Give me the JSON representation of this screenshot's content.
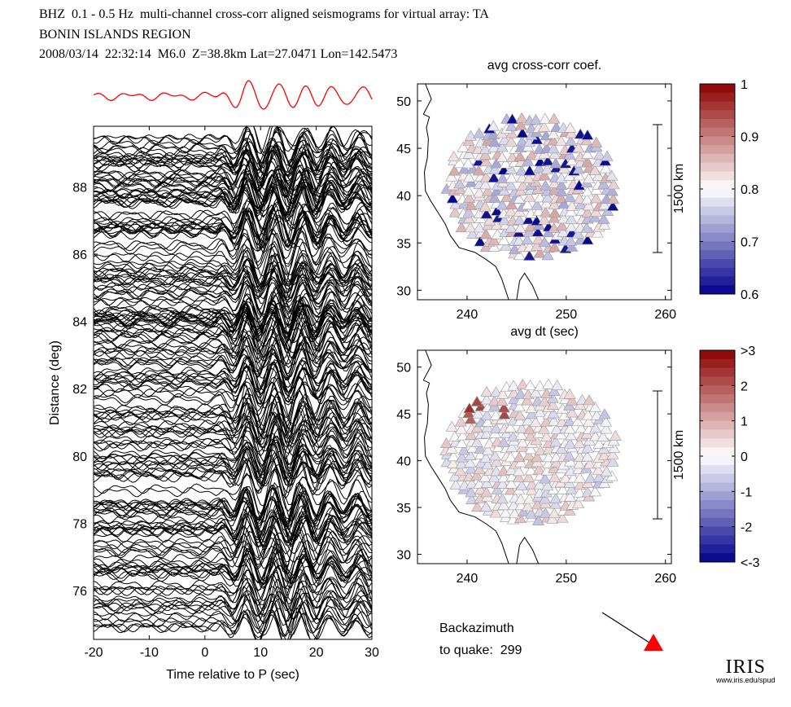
{
  "header": {
    "line1": "BHZ  0.1 - 0.5 Hz  multi-channel cross-corr aligned seismograms for virtual array: TA",
    "line2": "BONIN ISLANDS REGION",
    "line3": "2008/03/14  22:32:14  M6.0  Z=38.8km Lat=27.0471 Lon=142.5473"
  },
  "backazimuth": {
    "label": "Backazimuth",
    "value_label": "to quake:  299",
    "value": 299
  },
  "logo": {
    "text": "IRIS",
    "url_text": "www.iris.edu/spud"
  },
  "chart_data": [
    {
      "type": "line",
      "title": "",
      "xlabel": "Time relative to P (sec)",
      "ylabel": "Distance (deg)",
      "xlim": [
        -20,
        30
      ],
      "ylim": [
        74.55,
        89.8
      ],
      "xticks": [
        "-20",
        "-10",
        "0",
        "10",
        "20",
        "30"
      ],
      "yticks": [
        "76",
        "78",
        "80",
        "82",
        "84",
        "86",
        "88"
      ],
      "stack_trace_color": "#ff0000",
      "trace_color": "#000000",
      "description_series": "stacked seismograms, one per station"
    },
    {
      "type": "scatter",
      "title": "avg cross-corr coef.",
      "xlim": [
        235,
        260.6
      ],
      "ylim": [
        29,
        51.8
      ],
      "xticks": [
        "240",
        "250",
        "260"
      ],
      "yticks": [
        "30",
        "35",
        "40",
        "45",
        "50"
      ],
      "scale_label": "1500 km",
      "colorbar": {
        "min": 0.6,
        "max": 1,
        "ticks": [
          "0.6",
          "0.7",
          "0.8",
          "0.9",
          "1"
        ],
        "low_color": "#00008b",
        "mid_color": "#ffffff",
        "high_color": "#8b0000"
      }
    },
    {
      "type": "scatter",
      "title": "avg dt (sec)",
      "xlim": [
        235,
        260.6
      ],
      "ylim": [
        29,
        51.8
      ],
      "xticks": [
        "240",
        "250",
        "260"
      ],
      "yticks": [
        "30",
        "35",
        "40",
        "45",
        "50"
      ],
      "scale_label": "1500 km",
      "colorbar": {
        "min": -3,
        "max": 3,
        "ticks": [
          "<-3",
          "-2",
          "-1",
          "0",
          "1",
          "2",
          ">3"
        ],
        "low_color": "#00008b",
        "mid_color": "#ffffff",
        "high_color": "#8b0000"
      }
    }
  ]
}
